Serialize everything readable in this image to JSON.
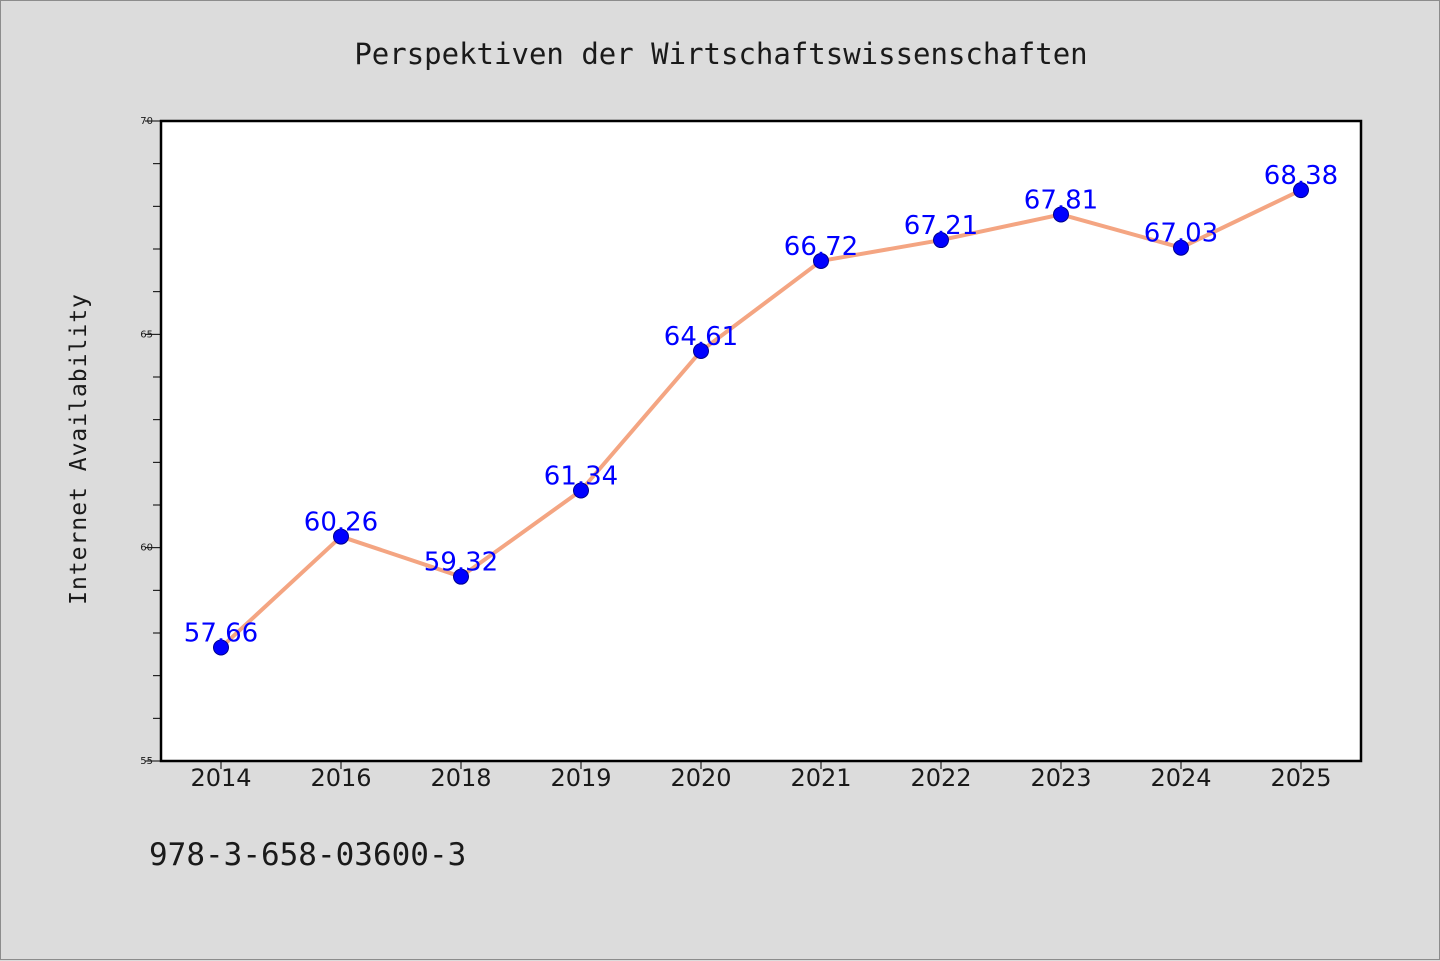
{
  "chart_data": {
    "type": "line",
    "title": "Perspektiven der Wirtschaftswissenschaften",
    "xlabel": "",
    "ylabel": "Internet Availability",
    "categories": [
      "2014",
      "2016",
      "2018",
      "2019",
      "2020",
      "2021",
      "2022",
      "2023",
      "2024",
      "2025"
    ],
    "series": [
      {
        "values": [
          57.66,
          60.26,
          59.32,
          61.34,
          64.61,
          66.72,
          67.21,
          67.81,
          67.03,
          68.38
        ],
        "labels": [
          "57.66",
          "60.26",
          "59.32",
          "61.34",
          "64.61",
          "66.72",
          "67.21",
          "67.81",
          "67.03",
          "68.38"
        ],
        "line_color": "#f4a582",
        "marker_color": "#0000ff",
        "label_color": "#0000ff"
      }
    ],
    "ylim": [
      55,
      70
    ],
    "yticks": [
      "55",
      "60",
      "65",
      "70"
    ],
    "grid": false,
    "legend": "none"
  },
  "note": "978-3-658-03600-3",
  "colors": {
    "background": "#dcdcdc",
    "plot_background": "#ffffff",
    "axis": "#000000"
  }
}
